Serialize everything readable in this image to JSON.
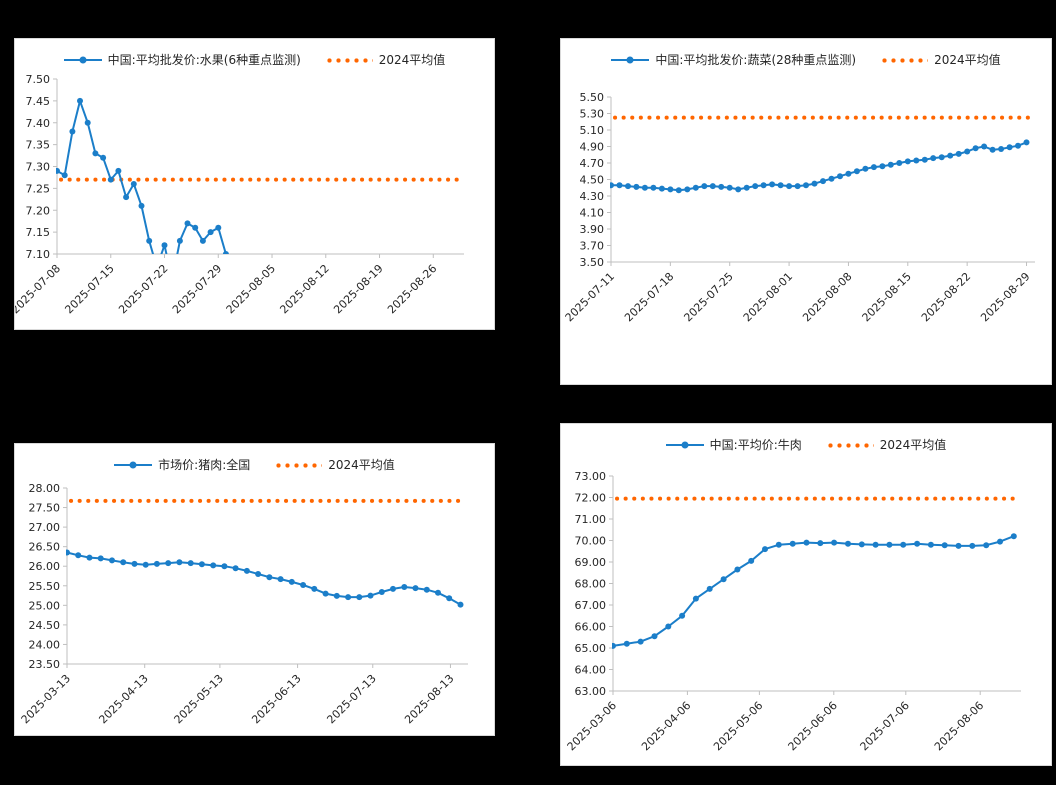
{
  "colors": {
    "series": "#1B7EC9",
    "average": "#FF6600",
    "axis": "#BFBFBF",
    "text": "#262626",
    "panel_background": "#FFFFFF",
    "page_background": "#000000"
  },
  "chart_data": [
    {
      "type": "line",
      "title": "中国:平均批发价:水果(6种重点监测)",
      "legend": {
        "series": "中国:平均批发价:水果(6种重点监测)",
        "average": "2024平均值"
      },
      "legend_position": "top",
      "grid": false,
      "y_min": 7.1,
      "y_max": 7.5,
      "y_step": 0.05,
      "average_value": 7.27,
      "x_domain": 53,
      "series_x_end": 23,
      "x_ticks": [
        {
          "x": 0,
          "label": "2025-07-08"
        },
        {
          "x": 7,
          "label": "2025-07-15"
        },
        {
          "x": 14,
          "label": "2025-07-22"
        },
        {
          "x": 21,
          "label": "2025-07-29"
        },
        {
          "x": 28,
          "label": "2025-08-05"
        },
        {
          "x": 35,
          "label": "2025-08-12"
        },
        {
          "x": 42,
          "label": "2025-08-19"
        },
        {
          "x": 49,
          "label": "2025-08-26"
        }
      ],
      "values": [
        7.29,
        7.28,
        7.38,
        7.45,
        7.4,
        7.33,
        7.32,
        7.27,
        7.29,
        7.23,
        7.26,
        7.21,
        7.13,
        7.07,
        7.12,
        7.04,
        7.13,
        7.17,
        7.16,
        7.13,
        7.15,
        7.16,
        7.1,
        7.0
      ]
    },
    {
      "type": "line",
      "title": "中国:平均批发价:蔬菜(28种重点监测)",
      "legend": {
        "series": "中国:平均批发价:蔬菜(28种重点监测)",
        "average": "2024平均值"
      },
      "legend_position": "top",
      "grid": false,
      "y_min": 3.5,
      "y_max": 5.5,
      "y_step": 0.2,
      "average_value": 5.25,
      "x_domain": 50,
      "series_x_end": 49,
      "x_ticks": [
        {
          "x": 0,
          "label": "2025-07-11"
        },
        {
          "x": 7,
          "label": "2025-07-18"
        },
        {
          "x": 14,
          "label": "2025-07-25"
        },
        {
          "x": 21,
          "label": "2025-08-01"
        },
        {
          "x": 28,
          "label": "2025-08-08"
        },
        {
          "x": 35,
          "label": "2025-08-15"
        },
        {
          "x": 42,
          "label": "2025-08-22"
        },
        {
          "x": 49,
          "label": "2025-08-29"
        }
      ],
      "values": [
        4.43,
        4.43,
        4.42,
        4.41,
        4.4,
        4.4,
        4.39,
        4.38,
        4.37,
        4.38,
        4.4,
        4.42,
        4.42,
        4.41,
        4.4,
        4.38,
        4.4,
        4.42,
        4.43,
        4.44,
        4.43,
        4.42,
        4.42,
        4.43,
        4.45,
        4.48,
        4.51,
        4.54,
        4.57,
        4.6,
        4.63,
        4.65,
        4.66,
        4.68,
        4.7,
        4.72,
        4.73,
        4.74,
        4.76,
        4.77,
        4.79,
        4.81,
        4.84,
        4.88,
        4.9,
        4.86,
        4.87,
        4.89,
        4.91,
        4.95
      ]
    },
    {
      "type": "line",
      "title": "市场价:猪肉:全国",
      "legend": {
        "series": "市场价:猪肉:全国",
        "average": "2024平均值"
      },
      "legend_position": "top",
      "grid": false,
      "y_min": 23.5,
      "y_max": 28.0,
      "y_step": 0.5,
      "average_value": 27.67,
      "x_domain": 160,
      "series_x_end": 157,
      "x_ticks": [
        {
          "x": 0,
          "label": "2025-03-13"
        },
        {
          "x": 31,
          "label": "2025-04-13"
        },
        {
          "x": 61,
          "label": "2025-05-13"
        },
        {
          "x": 92,
          "label": "2025-06-13"
        },
        {
          "x": 122,
          "label": "2025-07-13"
        },
        {
          "x": 153,
          "label": "2025-08-13"
        }
      ],
      "values": [
        26.35,
        26.28,
        26.22,
        26.2,
        26.15,
        26.1,
        26.06,
        26.04,
        26.06,
        26.08,
        26.1,
        26.08,
        26.05,
        26.02,
        26.0,
        25.95,
        25.88,
        25.8,
        25.72,
        25.67,
        25.6,
        25.52,
        25.42,
        25.3,
        25.24,
        25.21,
        25.21,
        25.25,
        25.34,
        25.42,
        25.47,
        25.44,
        25.4,
        25.32,
        25.18,
        25.02
      ]
    },
    {
      "type": "line",
      "title": "中国:平均价:牛肉",
      "legend": {
        "series": "中国:平均价:牛肉",
        "average": "2024平均值"
      },
      "legend_position": "top",
      "grid": false,
      "y_min": 63.0,
      "y_max": 73.0,
      "y_step": 1.0,
      "average_value": 71.95,
      "x_domain": 170,
      "series_x_end": 167,
      "x_ticks": [
        {
          "x": 0,
          "label": "2025-03-06"
        },
        {
          "x": 31,
          "label": "2025-04-06"
        },
        {
          "x": 61,
          "label": "2025-05-06"
        },
        {
          "x": 92,
          "label": "2025-06-06"
        },
        {
          "x": 122,
          "label": "2025-07-06"
        },
        {
          "x": 153,
          "label": "2025-08-06"
        }
      ],
      "values": [
        65.1,
        65.2,
        65.3,
        65.55,
        66.0,
        66.5,
        67.3,
        67.75,
        68.2,
        68.65,
        69.05,
        69.6,
        69.8,
        69.85,
        69.9,
        69.88,
        69.9,
        69.85,
        69.82,
        69.8,
        69.8,
        69.8,
        69.85,
        69.8,
        69.78,
        69.75,
        69.75,
        69.78,
        69.95,
        70.2
      ]
    }
  ]
}
